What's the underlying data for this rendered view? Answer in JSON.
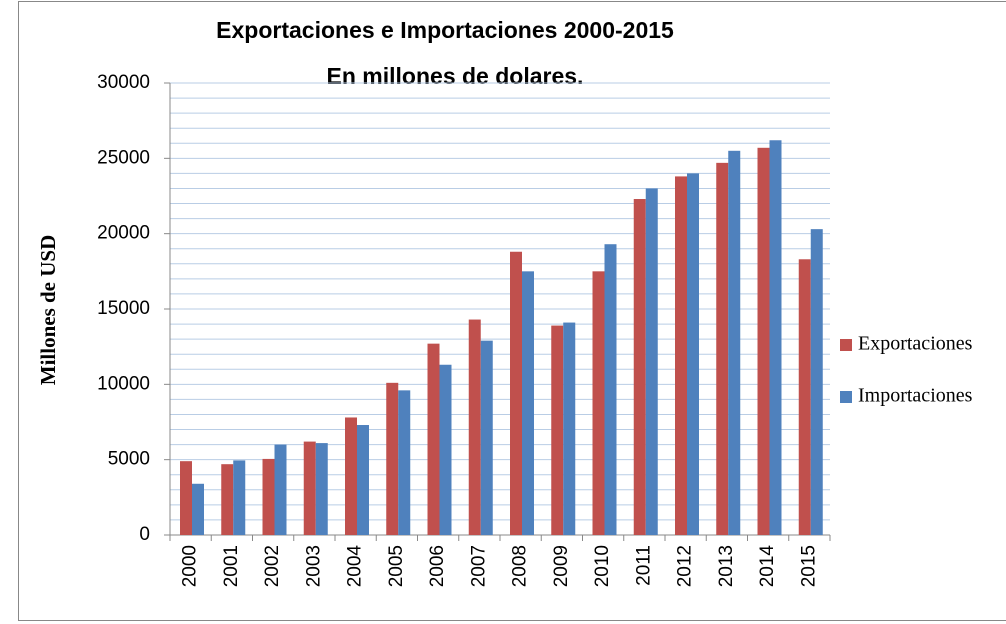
{
  "chart_data": {
    "type": "bar",
    "title": "Exportaciones e Importaciones 2000-2015",
    "subtitle": "En millones de dolares.",
    "y_label": "Millones de USD",
    "categories": [
      "2000",
      "2001",
      "2002",
      "2003",
      "2004",
      "2005",
      "2006",
      "2007",
      "2008",
      "2009",
      "2010",
      "2011",
      "2012",
      "2013",
      "2014",
      "2015"
    ],
    "series": [
      {
        "name": "Exportaciones",
        "color": "#c0504d",
        "values": [
          4900,
          4700,
          5050,
          6200,
          7800,
          10100,
          12700,
          14300,
          18800,
          13900,
          17500,
          22300,
          23800,
          24700,
          25700,
          18300
        ]
      },
      {
        "name": "Importaciones",
        "color": "#4f81bd",
        "values": [
          3400,
          4950,
          6000,
          6100,
          7300,
          9600,
          11300,
          12900,
          17500,
          14100,
          19300,
          23000,
          24000,
          25500,
          26200,
          20300
        ]
      }
    ],
    "ylim": [
      0,
      30000
    ],
    "yticks": [
      0,
      5000,
      10000,
      15000,
      20000,
      25000,
      30000
    ],
    "grid": true,
    "legend": "right"
  }
}
